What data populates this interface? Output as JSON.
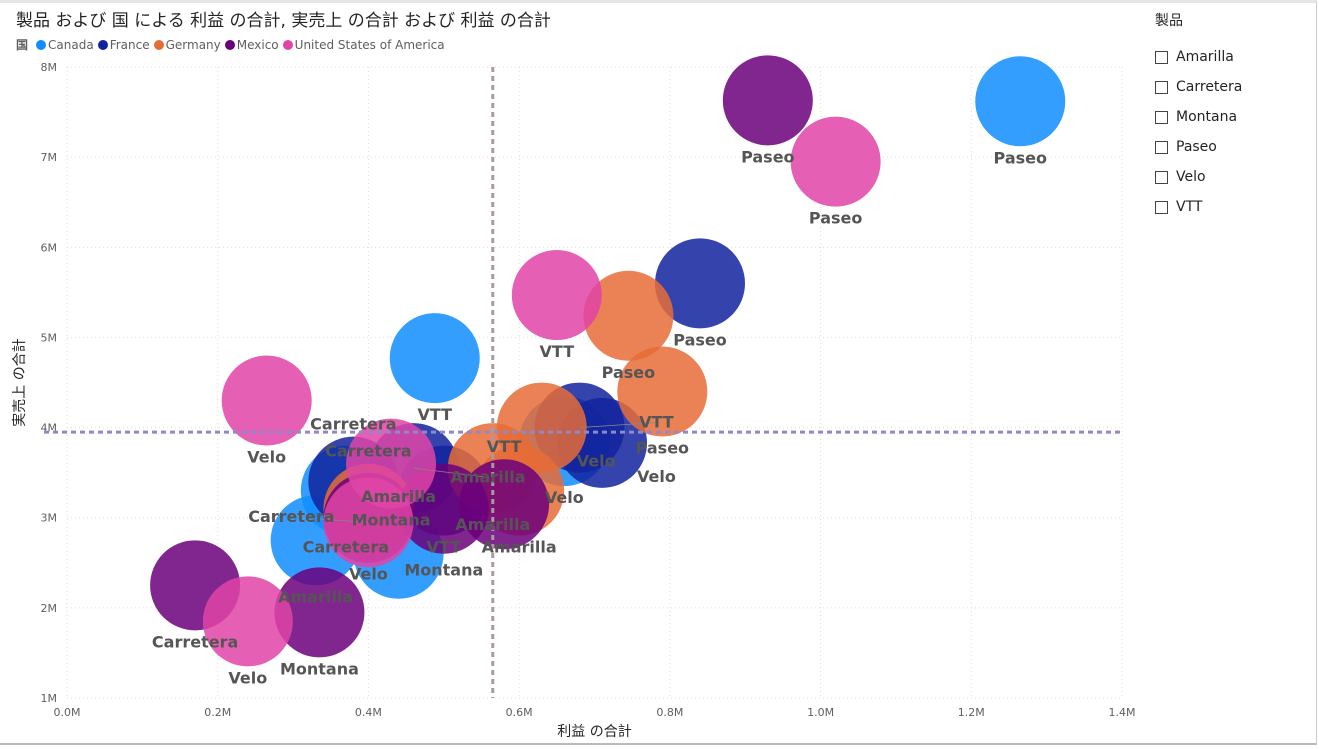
{
  "title": "製品 および 国 による 利益 の合計, 実売上 の合計 および 利益 の合計",
  "legend_title": "国",
  "slicer": {
    "title": "製品",
    "items": [
      "Amarilla",
      "Carretera",
      "Montana",
      "Paseo",
      "Velo",
      "VTT"
    ]
  },
  "chart_data": {
    "type": "scatter",
    "title": "製品 および 国 による 利益 の合計, 実売上 の合計 および 利益 の合計",
    "xlabel": "利益 の合計",
    "ylabel": "実売上 の合計",
    "xlim": [
      0,
      1.4
    ],
    "ylim": [
      1,
      8
    ],
    "xticks": [
      "0.0M",
      "0.2M",
      "0.4M",
      "0.6M",
      "0.8M",
      "1.0M",
      "1.2M",
      "1.4M"
    ],
    "yticks": [
      "1M",
      "2M",
      "3M",
      "4M",
      "5M",
      "6M",
      "7M",
      "8M"
    ],
    "grid": true,
    "legend_position": "top-left",
    "reference_lines": {
      "x": 0.565,
      "y": 3.95
    },
    "series": [
      {
        "name": "Canada",
        "color": "#118DFF",
        "points": [
          {
            "label": "Paseo",
            "x": 1.265,
            "y": 7.62
          },
          {
            "label": "VTT",
            "x": 0.488,
            "y": 4.77
          },
          {
            "label": "Amarilla",
            "x": 0.33,
            "y": 2.75
          },
          {
            "label": "Carretera",
            "x": 0.37,
            "y": 3.3
          },
          {
            "label": "Amarilla",
            "x": 0.44,
            "y": 2.6
          },
          {
            "label": "Velo",
            "x": 0.66,
            "y": 3.85
          }
        ]
      },
      {
        "name": "France",
        "color": "#12239E",
        "points": [
          {
            "label": "Paseo",
            "x": 0.84,
            "y": 5.6
          },
          {
            "label": "Velo",
            "x": 0.71,
            "y": 3.83
          },
          {
            "label": "VTT",
            "x": 0.68,
            "y": 4.0
          },
          {
            "label": "Carretera",
            "x": 0.38,
            "y": 3.4
          },
          {
            "label": "Amarilla",
            "x": 0.46,
            "y": 3.55
          },
          {
            "label": "VTT",
            "x": 0.5,
            "y": 3.3
          }
        ]
      },
      {
        "name": "Germany",
        "color": "#E66C37",
        "points": [
          {
            "label": "Paseo",
            "x": 0.79,
            "y": 4.4
          },
          {
            "label": "Paseo",
            "x": 0.745,
            "y": 5.24
          },
          {
            "label": "Velo",
            "x": 0.63,
            "y": 4.0
          },
          {
            "label": "Amarilla",
            "x": 0.6,
            "y": 3.3
          },
          {
            "label": "Amarilla",
            "x": 0.565,
            "y": 3.55
          },
          {
            "label": "Carretera",
            "x": 0.4,
            "y": 3.1
          }
        ]
      },
      {
        "name": "Mexico",
        "color": "#6B007B",
        "points": [
          {
            "label": "Paseo",
            "x": 0.93,
            "y": 7.63
          },
          {
            "label": "Carretera",
            "x": 0.17,
            "y": 2.25
          },
          {
            "label": "Montana",
            "x": 0.335,
            "y": 1.95
          },
          {
            "label": "VTT",
            "x": 0.58,
            "y": 3.15
          },
          {
            "label": "Montana",
            "x": 0.5,
            "y": 3.1
          },
          {
            "label": "Velo",
            "x": 0.4,
            "y": 3.0
          }
        ]
      },
      {
        "name": "United States of America",
        "color": "#E044A7",
        "points": [
          {
            "label": "Paseo",
            "x": 1.02,
            "y": 6.95
          },
          {
            "label": "VTT",
            "x": 0.65,
            "y": 5.47
          },
          {
            "label": "Velo",
            "x": 0.265,
            "y": 4.3
          },
          {
            "label": "Montana",
            "x": 0.43,
            "y": 3.6
          },
          {
            "label": "Velo",
            "x": 0.24,
            "y": 1.85
          },
          {
            "label": "Carretera",
            "x": 0.4,
            "y": 2.95
          }
        ]
      }
    ]
  }
}
